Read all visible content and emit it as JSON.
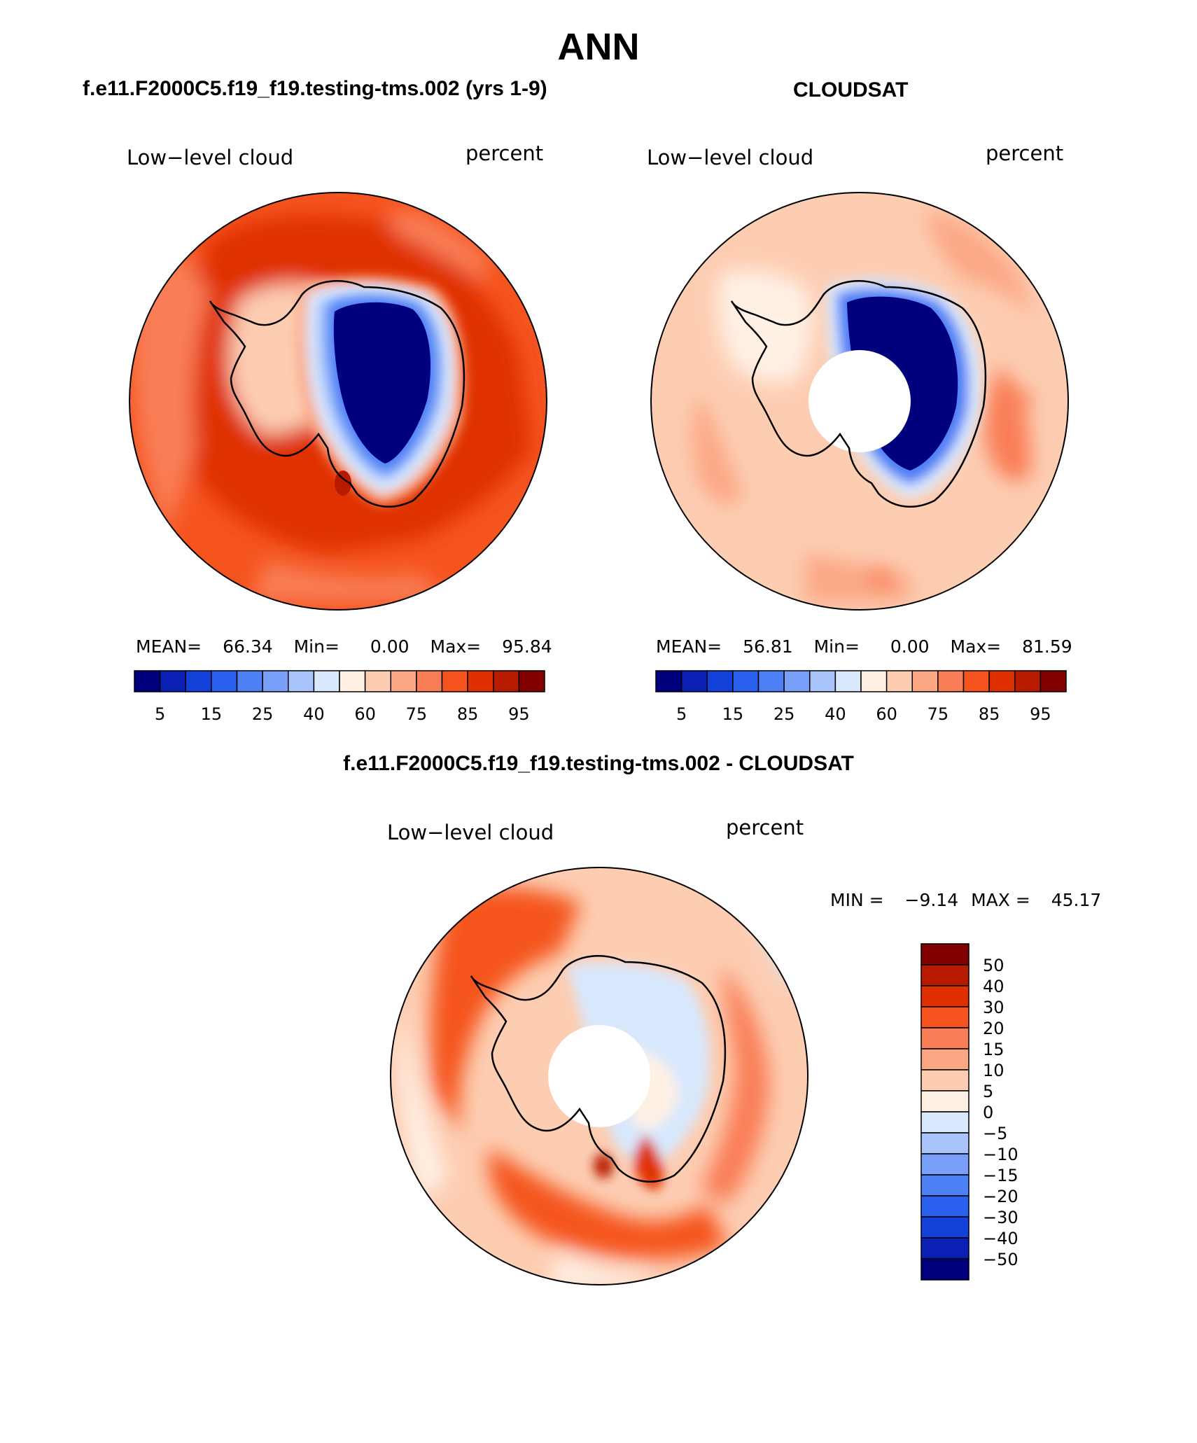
{
  "page": {
    "title": "ANN"
  },
  "panels": [
    {
      "id": "model",
      "case_title": "f.e11.F2000C5.f19_f19.testing-tms.002 (yrs 1-9)",
      "variable": "Low−level cloud",
      "units": "percent",
      "stats": {
        "mean_label": "MEAN=",
        "mean": "66.34",
        "min_label": "Min=",
        "min": "0.00",
        "max_label": "Max=",
        "max": "95.84"
      },
      "pole_hole": false
    },
    {
      "id": "obs",
      "case_title": "CLOUDSAT",
      "variable": "Low−level cloud",
      "units": "percent",
      "stats": {
        "mean_label": "MEAN=",
        "mean": "56.81",
        "min_label": "Min=",
        "min": "0.00",
        "max_label": "Max=",
        "max": "81.59"
      },
      "pole_hole": true
    },
    {
      "id": "diff",
      "case_title": "f.e11.F2000C5.f19_f19.testing-tms.002 - CLOUDSAT",
      "variable": "Low−level cloud",
      "units": "percent",
      "stats": {
        "min_label": "MIN =",
        "min": "−9.14",
        "max_label": "MAX =",
        "max": "45.17"
      },
      "pole_hole": true
    }
  ],
  "colorbars": {
    "field": {
      "colors": [
        "#00007f",
        "#0a1fb4",
        "#1240d8",
        "#2a60ee",
        "#4d7ff5",
        "#7a9ff8",
        "#a9c4fb",
        "#d8e8fd",
        "#fff0e4",
        "#fdcdb2",
        "#fba784",
        "#f97e57",
        "#f5541f",
        "#e03000",
        "#b81a00",
        "#820000"
      ],
      "labels": [
        "5",
        "15",
        "25",
        "40",
        "60",
        "75",
        "85",
        "95"
      ]
    },
    "diff": {
      "colors": [
        "#820000",
        "#b81a00",
        "#e03000",
        "#f5541f",
        "#f97e57",
        "#fba784",
        "#fdcdb2",
        "#fff0e4",
        "#d8e8fd",
        "#a9c4fb",
        "#7a9ff8",
        "#4d7ff5",
        "#2a60ee",
        "#1240d8",
        "#0a1fb4",
        "#00007f"
      ],
      "labels": [
        "50",
        "40",
        "30",
        "20",
        "15",
        "10",
        "5",
        "0",
        "−5",
        "−10",
        "−15",
        "−20",
        "−30",
        "−40",
        "−50"
      ]
    }
  }
}
